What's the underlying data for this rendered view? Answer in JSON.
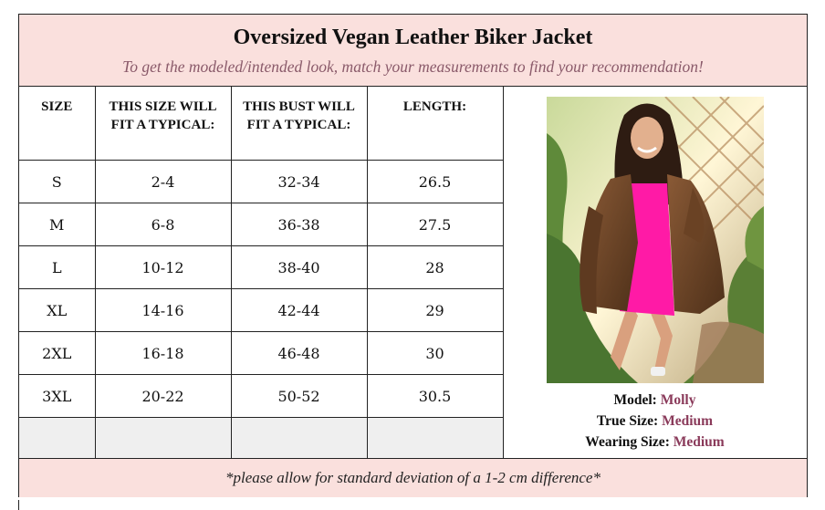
{
  "header": {
    "title": "Oversized Vegan Leather Biker Jacket",
    "subtitle": "To get the modeled/intended look, match your measurements to find your recommendation!"
  },
  "table": {
    "columns": [
      "SIZE",
      "THIS SIZE WILL FIT A TYPICAL:",
      "THIS BUST WILL FIT A TYPICAL:",
      "LENGTH:"
    ],
    "rows": [
      {
        "size": "S",
        "fit": "2-4",
        "bust": "32-34",
        "length": "26.5"
      },
      {
        "size": "M",
        "fit": "6-8",
        "bust": "36-38",
        "length": "27.5"
      },
      {
        "size": "L",
        "fit": "10-12",
        "bust": "38-40",
        "length": "28"
      },
      {
        "size": "XL",
        "fit": "14-16",
        "bust": "42-44",
        "length": "29"
      },
      {
        "size": "2XL",
        "fit": "16-18",
        "bust": "46-48",
        "length": "30"
      },
      {
        "size": "3XL",
        "fit": "20-22",
        "bust": "50-52",
        "length": "30.5"
      }
    ]
  },
  "model_info": {
    "model_label": "Model:",
    "model_name": "Molly",
    "true_size_label": "True Size:",
    "true_size": "Medium",
    "wearing_size_label": "Wearing Size:",
    "wearing_size": "Medium"
  },
  "footer": {
    "note": "*please allow for standard deviation of a 1-2 cm difference*"
  },
  "colors": {
    "header_bg": "#fae0dd",
    "accent_text": "#8a3a5a",
    "empty_row_bg": "#efefef"
  }
}
